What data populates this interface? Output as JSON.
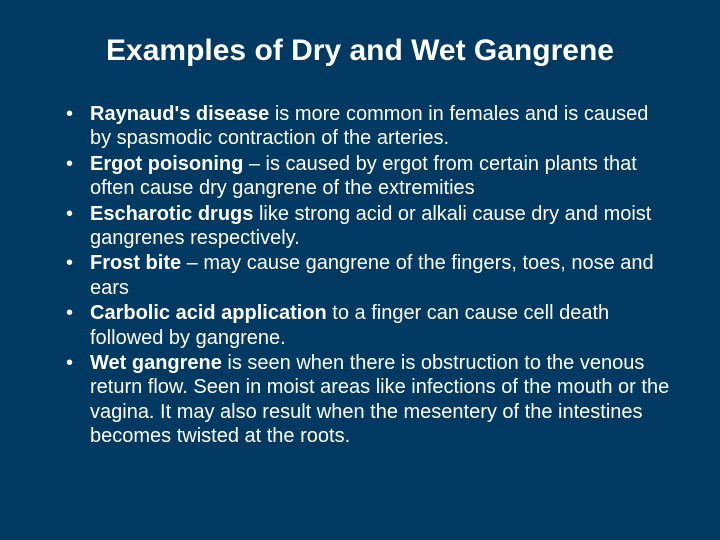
{
  "background_color": "#003a63",
  "text_color": "#ffffff",
  "title": "Examples of Dry and Wet Gangrene",
  "title_fontsize": 30,
  "body_fontsize": 20,
  "bullets": [
    {
      "term": "Raynaud's disease",
      "rest": " is more common in females and is caused by spasmodic contraction of the arteries."
    },
    {
      "term": "Ergot poisoning",
      "rest": " – is caused by ergot from certain plants that often cause dry gangrene of the extremities"
    },
    {
      "term": "Escharotic drugs",
      "rest": " like strong acid or alkali cause dry and moist gangrenes respectively."
    },
    {
      "term": "Frost bite",
      "rest": " – may cause gangrene of the fingers, toes, nose and ears"
    },
    {
      "term": "Carbolic acid application",
      "rest": " to a finger can cause cell death followed by gangrene."
    },
    {
      "term": "Wet gangrene",
      "rest": " is seen when there is obstruction to the venous return flow. Seen in moist areas like infections of the mouth or the vagina. It may also result when the mesentery of the intestines becomes twisted at the roots."
    }
  ]
}
